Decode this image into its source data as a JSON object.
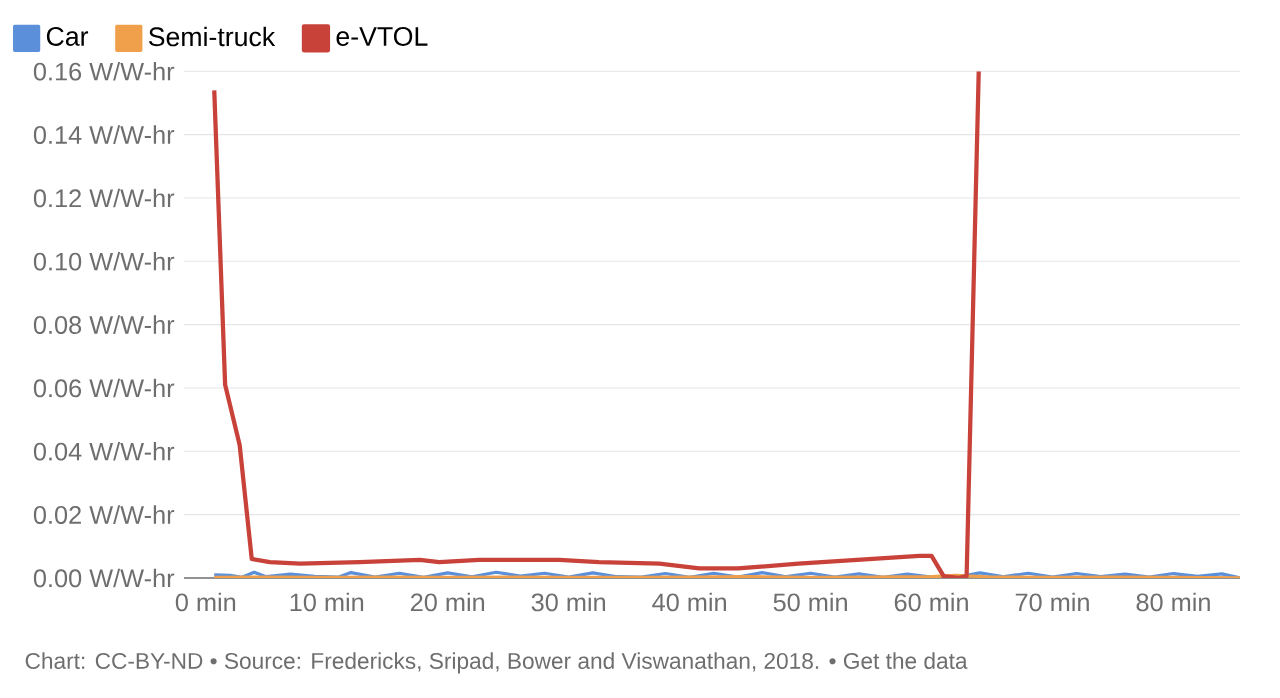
{
  "chart_data": {
    "type": "line",
    "x": [
      0.7,
      1.6,
      2.8,
      3.8,
      5.3,
      7.8,
      12.7,
      17.7,
      19.3,
      22.6,
      29.2,
      32.5,
      37.5,
      40.8,
      44,
      49,
      59,
      60,
      61,
      62.2,
      62.9,
      63.9
    ],
    "series": [
      {
        "name": "Car",
        "color": "#5b8fd9",
        "x": [
          0.7,
          2,
          3,
          4,
          5,
          7,
          9,
          11,
          12,
          14,
          16,
          18,
          20,
          22,
          24,
          26,
          28,
          30,
          32,
          34,
          36,
          38,
          40,
          42,
          44,
          46,
          48,
          50,
          52,
          54,
          56,
          58,
          60,
          62,
          64,
          66,
          68,
          70,
          72,
          74,
          76,
          78,
          80,
          82,
          84,
          85.5
        ],
        "values": [
          0.001,
          0.0008,
          0.0002,
          0.0018,
          0.0004,
          0.0012,
          0.0005,
          0.0003,
          0.0017,
          0.0003,
          0.0015,
          0.0002,
          0.0016,
          0.0004,
          0.0018,
          0.0006,
          0.0015,
          0.0003,
          0.0016,
          0.0004,
          0.0003,
          0.0014,
          0.0002,
          0.0015,
          0.0003,
          0.0017,
          0.0004,
          0.0015,
          0.0003,
          0.0013,
          0.0002,
          0.0012,
          0.0003,
          0.0002,
          0.0016,
          0.0004,
          0.0015,
          0.0003,
          0.0014,
          0.0004,
          0.0012,
          0.0003,
          0.0014,
          0.0005,
          0.0013,
          0
        ]
      },
      {
        "name": "Semi-truck",
        "color": "#f0a04b",
        "x": [
          0.7,
          5,
          10,
          15,
          20,
          25,
          30,
          35,
          40,
          45,
          50,
          55,
          60,
          62,
          65,
          70,
          75,
          80,
          85.5
        ],
        "values": [
          0.0002,
          0.0003,
          0.0002,
          0.0003,
          0.0002,
          0.0003,
          0.0002,
          0.0002,
          0.0003,
          0.0004,
          0.0002,
          0.0003,
          0.0004,
          0.0008,
          0.0003,
          0.0002,
          0.0003,
          0.0002,
          0
        ]
      },
      {
        "name": "e-VTOL",
        "color": "#c8423a",
        "values": [
          0.154,
          0.061,
          0.042,
          0.006,
          0.005,
          0.0045,
          0.005,
          0.0057,
          0.005,
          0.0057,
          0.0057,
          0.005,
          0.0045,
          0.003,
          0.003,
          0.0045,
          0.007,
          0.007,
          0.0006,
          0,
          0.0006,
          0.16
        ]
      }
    ],
    "xlim": [
      -1.8,
      85.5
    ],
    "ylim": [
      0,
      0.16
    ],
    "xticks": [
      {
        "value": 0,
        "label": "0 min"
      },
      {
        "value": 10,
        "label": "10 min"
      },
      {
        "value": 20,
        "label": "20 min"
      },
      {
        "value": 30,
        "label": "30 min"
      },
      {
        "value": 40,
        "label": "40 min"
      },
      {
        "value": 50,
        "label": "50 min"
      },
      {
        "value": 60,
        "label": "60 min"
      },
      {
        "value": 70,
        "label": "70 min"
      },
      {
        "value": 80,
        "label": "80 min"
      }
    ],
    "yticks": [
      {
        "value": 0,
        "label": "0.00 W/W-hr"
      },
      {
        "value": 0.02,
        "label": "0.02 W/W-hr"
      },
      {
        "value": 0.04,
        "label": "0.04 W/W-hr"
      },
      {
        "value": 0.06,
        "label": "0.06 W/W-hr"
      },
      {
        "value": 0.08,
        "label": "0.08 W/W-hr"
      },
      {
        "value": 0.1,
        "label": "0.10 W/W-hr"
      },
      {
        "value": 0.12,
        "label": "0.12 W/W-hr"
      },
      {
        "value": 0.14,
        "label": "0.14 W/W-hr"
      },
      {
        "value": 0.16,
        "label": "0.16 W/W-hr"
      }
    ],
    "grid": "y",
    "legend": "top left",
    "marker": "none",
    "line_style": "solid",
    "annotations": [
      "Chart: CC-BY-ND • Source: Fredericks, Sripad, Bower and Viswanathan, 2018. • Get the data"
    ]
  }
}
